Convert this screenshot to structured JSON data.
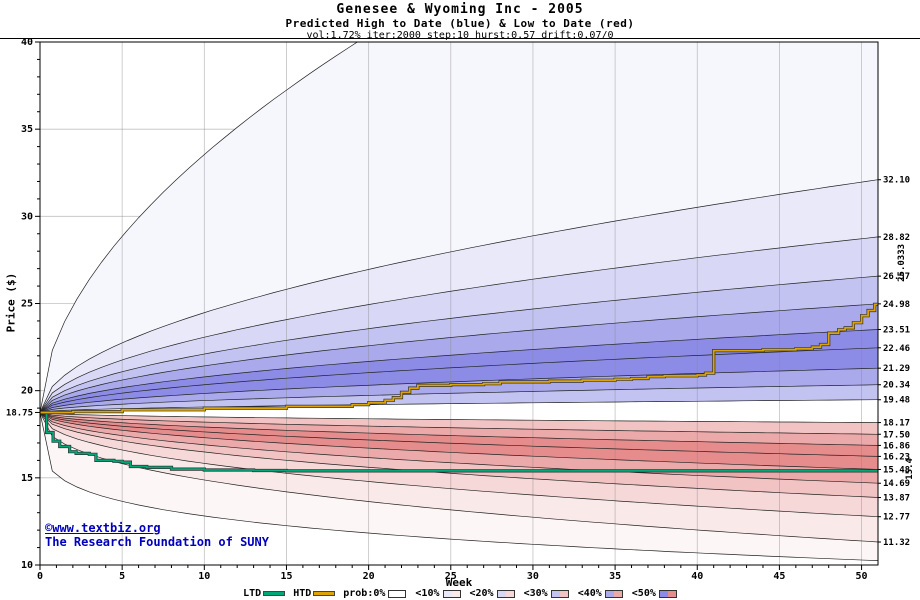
{
  "header": {
    "title": "Genesee & Wyoming Inc - 2005",
    "subtitle": "Predicted High to Date (blue) &  Low to Date (red)",
    "params": "vol:1.72% iter:2000 step:10 hurst:0.57 drift:0.07/0"
  },
  "footer": {
    "copyright": "©www.textbiz.org",
    "org": "The Research Foundation of SUNY"
  },
  "legend": {
    "ltd_label": "LTD",
    "htd_label": "HTD",
    "prob_labels": [
      "prob:0%",
      "<10%",
      "<20%",
      "<30%",
      "<40%",
      "<50%"
    ],
    "ltd_color": "#00a878",
    "htd_color": "#dca404",
    "blue_shades": [
      "#ffffff",
      "#e9e9fa",
      "#d8d8f6",
      "#c3c3f1",
      "#a9a9ec",
      "#8c8ce6"
    ],
    "red_shades": [
      "#ffffff",
      "#fae9e9",
      "#f6d8d8",
      "#f1c3c3",
      "#eca9a9",
      "#e68c8c"
    ]
  },
  "chart_data": {
    "type": "area",
    "title": "Genesee & Wyoming Inc - 2005",
    "subtitle": "Predicted High to Date (blue) &  Low to Date (red)",
    "xlabel": "Week",
    "ylabel": "Price ($)",
    "xlim": [
      0,
      51
    ],
    "ylim": [
      10,
      40
    ],
    "grid": true,
    "x_ticks": [
      0,
      5,
      10,
      15,
      20,
      25,
      30,
      35,
      40,
      45,
      50
    ],
    "y_ticks": [
      10,
      15,
      20,
      25,
      30,
      35,
      40
    ],
    "start_price": 18.75,
    "start_label": "18.75",
    "htd_final_label": "25.0333",
    "ltd_final_label": "15.4",
    "high_boundaries": [
      {
        "end": 55.0,
        "exp": 0.55,
        "label": ""
      },
      {
        "end": 32.1,
        "exp": 0.52,
        "label": "32.10"
      },
      {
        "end": 28.82,
        "exp": 0.52,
        "label": "28.82"
      },
      {
        "end": 26.57,
        "exp": 0.52,
        "label": "26.57"
      },
      {
        "end": 24.98,
        "exp": 0.52,
        "label": "24.98"
      },
      {
        "end": 23.51,
        "exp": 0.52,
        "label": "23.51"
      },
      {
        "end": 22.46,
        "exp": 0.52,
        "label": "22.46"
      },
      {
        "end": 21.29,
        "exp": 0.52,
        "label": "21.29"
      },
      {
        "end": 20.34,
        "exp": 0.52,
        "label": "20.34"
      },
      {
        "end": 19.48,
        "exp": 0.52,
        "label": "19.48"
      }
    ],
    "high_band_colors": [
      "#f6f6fd",
      "#e9e9fa",
      "#d8d8f6",
      "#c3c3f1",
      "#a9a9ec",
      "#8c8ce6",
      "#8c8ce6",
      "#a9a9ec",
      "#c3c3f1"
    ],
    "low_boundaries": [
      {
        "end": 10.25,
        "exp": 0.22,
        "label": ""
      },
      {
        "end": 11.32,
        "exp": 0.4,
        "label": "11.32"
      },
      {
        "end": 12.77,
        "exp": 0.44,
        "label": "12.77"
      },
      {
        "end": 13.87,
        "exp": 0.47,
        "label": "13.87"
      },
      {
        "end": 14.69,
        "exp": 0.48,
        "label": "14.69"
      },
      {
        "end": 15.48,
        "exp": 0.5,
        "label": "15.48"
      },
      {
        "end": 16.23,
        "exp": 0.5,
        "label": "16.23"
      },
      {
        "end": 16.86,
        "exp": 0.5,
        "label": "16.86"
      },
      {
        "end": 17.5,
        "exp": 0.5,
        "label": "17.50"
      },
      {
        "end": 18.17,
        "exp": 0.5,
        "label": "18.17"
      }
    ],
    "low_band_colors": [
      "#fdf6f6",
      "#fae9e9",
      "#f6d8d8",
      "#f1c3c3",
      "#eca9a9",
      "#e68c8c",
      "#e68c8c",
      "#eca9a9",
      "#f1c3c3"
    ],
    "htd_points": [
      [
        0,
        18.75
      ],
      [
        2,
        18.8
      ],
      [
        5,
        18.9
      ],
      [
        10,
        19.0
      ],
      [
        15,
        19.1
      ],
      [
        19,
        19.2
      ],
      [
        20,
        19.3
      ],
      [
        21,
        19.45
      ],
      [
        21.5,
        19.6
      ],
      [
        22,
        19.9
      ],
      [
        22.5,
        20.15
      ],
      [
        23,
        20.3
      ],
      [
        25,
        20.35
      ],
      [
        27,
        20.4
      ],
      [
        28,
        20.5
      ],
      [
        31,
        20.55
      ],
      [
        33,
        20.6
      ],
      [
        35,
        20.65
      ],
      [
        36,
        20.7
      ],
      [
        37,
        20.8
      ],
      [
        38,
        20.85
      ],
      [
        40,
        20.9
      ],
      [
        40.5,
        21.0
      ],
      [
        41,
        22.3
      ],
      [
        44,
        22.35
      ],
      [
        46,
        22.4
      ],
      [
        47,
        22.5
      ],
      [
        47.5,
        22.65
      ],
      [
        48,
        23.3
      ],
      [
        48.6,
        23.5
      ],
      [
        49,
        23.6
      ],
      [
        49.5,
        23.9
      ],
      [
        50,
        24.3
      ],
      [
        50.4,
        24.6
      ],
      [
        50.8,
        24.95
      ],
      [
        51,
        25.0333
      ]
    ],
    "ltd_points": [
      [
        0,
        18.75
      ],
      [
        0.4,
        17.6
      ],
      [
        0.8,
        17.1
      ],
      [
        1.2,
        16.8
      ],
      [
        1.8,
        16.5
      ],
      [
        2.2,
        16.4
      ],
      [
        3,
        16.35
      ],
      [
        3.4,
        16.0
      ],
      [
        4.5,
        15.95
      ],
      [
        5,
        15.9
      ],
      [
        5.5,
        15.65
      ],
      [
        6.5,
        15.6
      ],
      [
        8,
        15.5
      ],
      [
        10,
        15.45
      ],
      [
        13,
        15.42
      ],
      [
        15,
        15.4
      ],
      [
        51,
        15.4
      ]
    ]
  }
}
